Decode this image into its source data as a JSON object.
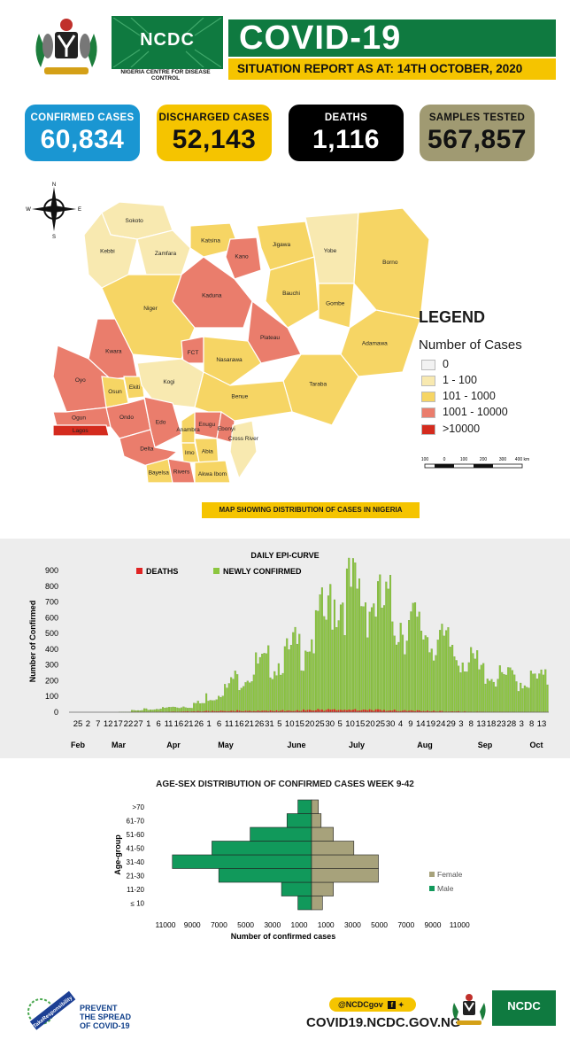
{
  "header": {
    "logo_text": "NCDC",
    "logo_caption": "NIGERIA CENTRE FOR DISEASE CONTROL",
    "title": "COVID-19",
    "subtitle": "SITUATION REPORT AS AT: 14TH OCTOBER, 2020"
  },
  "stats": [
    {
      "label": "CONFIRMED CASES",
      "value": "60,834",
      "bg": "#1a96d2",
      "fg": "#ffffff"
    },
    {
      "label": "DISCHARGED CASES",
      "value": "52,143",
      "bg": "#f5c400",
      "fg": "#111111"
    },
    {
      "label": "DEATHS",
      "value": "1,116",
      "bg": "#000000",
      "fg": "#ffffff"
    },
    {
      "label": "SAMPLES TESTED",
      "value": "567,857",
      "bg": "#a09a72",
      "fg": "#111111"
    }
  ],
  "map": {
    "compass": {
      "n": "N",
      "s": "S",
      "e": "E",
      "w": "W"
    },
    "states": [
      {
        "name": "Sokoto",
        "cat": "low"
      },
      {
        "name": "Kebbi",
        "cat": "low"
      },
      {
        "name": "Zamfara",
        "cat": "low"
      },
      {
        "name": "Katsina",
        "cat": "mid"
      },
      {
        "name": "Kano",
        "cat": "high"
      },
      {
        "name": "Jigawa",
        "cat": "mid"
      },
      {
        "name": "Yobe",
        "cat": "low"
      },
      {
        "name": "Borno",
        "cat": "mid"
      },
      {
        "name": "Bauchi",
        "cat": "mid"
      },
      {
        "name": "Gombe",
        "cat": "mid"
      },
      {
        "name": "Kaduna",
        "cat": "high"
      },
      {
        "name": "Niger",
        "cat": "mid"
      },
      {
        "name": "Adamawa",
        "cat": "mid"
      },
      {
        "name": "Plateau",
        "cat": "high"
      },
      {
        "name": "FCT",
        "cat": "high"
      },
      {
        "name": "Kwara",
        "cat": "high"
      },
      {
        "name": "Nasarawa",
        "cat": "mid"
      },
      {
        "name": "Taraba",
        "cat": "mid"
      },
      {
        "name": "Oyo",
        "cat": "high"
      },
      {
        "name": "Osun",
        "cat": "mid"
      },
      {
        "name": "Ekiti",
        "cat": "mid"
      },
      {
        "name": "Kogi",
        "cat": "low"
      },
      {
        "name": "Benue",
        "cat": "mid"
      },
      {
        "name": "Ogun",
        "cat": "high"
      },
      {
        "name": "Ondo",
        "cat": "high"
      },
      {
        "name": "Edo",
        "cat": "high"
      },
      {
        "name": "Enugu",
        "cat": "high"
      },
      {
        "name": "Ebonyi",
        "cat": "high"
      },
      {
        "name": "Lagos",
        "cat": "vhigh"
      },
      {
        "name": "Anambra",
        "cat": "mid"
      },
      {
        "name": "Delta",
        "cat": "high"
      },
      {
        "name": "Imo",
        "cat": "mid"
      },
      {
        "name": "Abia",
        "cat": "mid"
      },
      {
        "name": "Cross River",
        "cat": "low"
      },
      {
        "name": "Bayelsa",
        "cat": "mid"
      },
      {
        "name": "Rivers",
        "cat": "high"
      },
      {
        "name": "Akwa Ibom",
        "cat": "mid"
      }
    ],
    "legend_title": "LEGEND",
    "legend_subtitle": "Number of Cases",
    "legend": [
      {
        "label": "0",
        "color": "#f2f2f2"
      },
      {
        "label": "1 - 100",
        "color": "#f8e9b0"
      },
      {
        "label": "101 - 1000",
        "color": "#f6d564"
      },
      {
        "label": "1001 - 10000",
        "color": "#ea7d6c"
      },
      {
        "label": ">10000",
        "color": "#d42b1e"
      }
    ],
    "scale_labels": [
      "100",
      "0",
      "100",
      "200",
      "300",
      "400 km"
    ],
    "caption": "MAP SHOWING DISTRIBUTION OF CASES IN NIGERIA"
  },
  "footer": {
    "handle": "@NCDCgov",
    "url": "COVID19.NCDC.GOV.NG",
    "badge_text": "TakeResponsibility",
    "prevent_lines": [
      "PREVENT",
      "THE SPREAD",
      "OF COVID-19"
    ]
  },
  "chart_data": [
    {
      "type": "bar",
      "title": "DAILY EPI-CURVE",
      "ylabel": "Number of Confirmed",
      "ylim": [
        0,
        900
      ],
      "yticks": [
        0,
        100,
        200,
        300,
        400,
        500,
        600,
        700,
        800,
        900
      ],
      "legend": [
        {
          "name": "DEATHS",
          "color": "#e02424"
        },
        {
          "name": "NEWLY CONFIRMED",
          "color": "#8cc63f"
        }
      ],
      "x_tick_labels": [
        "25",
        "2",
        "7",
        "12",
        "17",
        "22",
        "27",
        "1",
        "6",
        "11",
        "16",
        "21",
        "26",
        "1",
        "6",
        "11",
        "16",
        "21",
        "26",
        "31",
        "5",
        "10",
        "15",
        "20",
        "25",
        "30",
        "5",
        "10",
        "15",
        "20",
        "25",
        "30",
        "4",
        "9",
        "14",
        "19",
        "24",
        "29",
        "3",
        "8",
        "13",
        "18",
        "23",
        "28",
        "3",
        "8",
        "13"
      ],
      "month_labels": [
        "Feb",
        "Mar",
        "Apr",
        "May",
        "June",
        "July",
        "Aug",
        "Sep",
        "Oct"
      ],
      "series": [
        {
          "name": "NEWLY CONFIRMED",
          "start_date": "2020-02-25",
          "end_date": "2020-10-13",
          "weekly_avg_values": [
            0,
            0,
            0,
            0,
            2,
            8,
            14,
            20,
            25,
            30,
            45,
            80,
            120,
            170,
            200,
            240,
            260,
            290,
            330,
            390,
            480,
            600,
            620,
            600,
            580,
            540,
            480,
            450,
            420,
            380,
            340,
            300,
            250,
            210,
            180,
            180,
            160,
            170,
            170,
            175
          ]
        },
        {
          "name": "DEATHS",
          "weekly_avg_values": [
            0,
            0,
            0,
            0,
            0,
            1,
            1,
            2,
            3,
            4,
            5,
            6,
            7,
            8,
            8,
            9,
            10,
            10,
            11,
            12,
            13,
            14,
            14,
            14,
            13,
            12,
            11,
            9,
            8,
            6,
            5,
            4,
            3,
            2,
            2,
            2,
            1,
            1,
            1,
            1
          ]
        }
      ]
    },
    {
      "type": "bar",
      "orientation": "horizontal",
      "title": "AGE-SEX DISTRIBUTION OF CONFIRMED CASES WEEK 9-42",
      "ylabel": "Age-group",
      "xlabel": "Number of confirmed cases",
      "categories": [
        "≤ 10",
        "11-20",
        "21-30",
        "31-40",
        "41-50",
        "51-60",
        "61-70",
        ">70"
      ],
      "x_tick_labels": [
        "11000",
        "9000",
        "7000",
        "5000",
        "3000",
        "1000",
        "1000",
        "3000",
        "5000",
        "7000",
        "9000",
        "11000"
      ],
      "xlim": [
        -12000,
        12000
      ],
      "series": [
        {
          "name": "Male",
          "color": "#11995b",
          "values": [
            1000,
            2200,
            6800,
            10200,
            7300,
            4500,
            1800,
            1000
          ]
        },
        {
          "name": "Female",
          "color": "#a7a27b",
          "values": [
            800,
            1600,
            4900,
            4900,
            3100,
            1600,
            700,
            500
          ]
        }
      ]
    }
  ]
}
